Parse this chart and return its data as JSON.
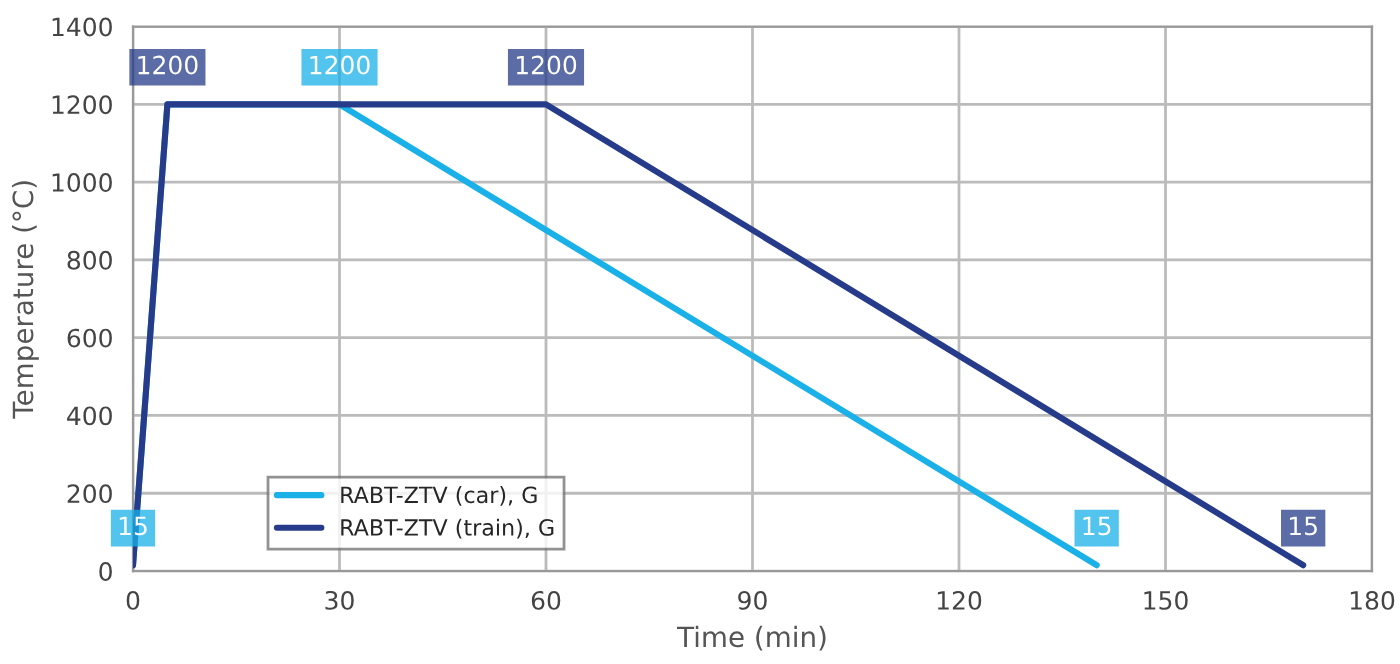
{
  "chart_data": {
    "type": "line",
    "xlabel": "Time (min)",
    "ylabel": "Temperature (°C)",
    "xlim": [
      0,
      180
    ],
    "xticks": [
      0,
      30,
      60,
      90,
      120,
      150,
      180
    ],
    "ylim": [
      0,
      1400
    ],
    "yticks": [
      0,
      200,
      400,
      600,
      800,
      1000,
      1200,
      1400
    ],
    "grid": true,
    "legend": "bottom left",
    "marker": "none",
    "line_style": "solid",
    "series": [
      {
        "name": "RABT-ZTV (car), G",
        "color": "#1ab0e8",
        "x": [
          0,
          5,
          30,
          140
        ],
        "values": [
          15,
          1200,
          1200,
          15
        ],
        "value_labels": [
          "15",
          null,
          "1200",
          "15"
        ]
      },
      {
        "name": "RABT-ZTV (train), G",
        "color": "#263b8a",
        "x": [
          0,
          5,
          60,
          170
        ],
        "values": [
          15,
          1200,
          1200,
          15
        ],
        "value_labels": [
          null,
          "1200",
          "1200",
          "15"
        ]
      }
    ]
  }
}
